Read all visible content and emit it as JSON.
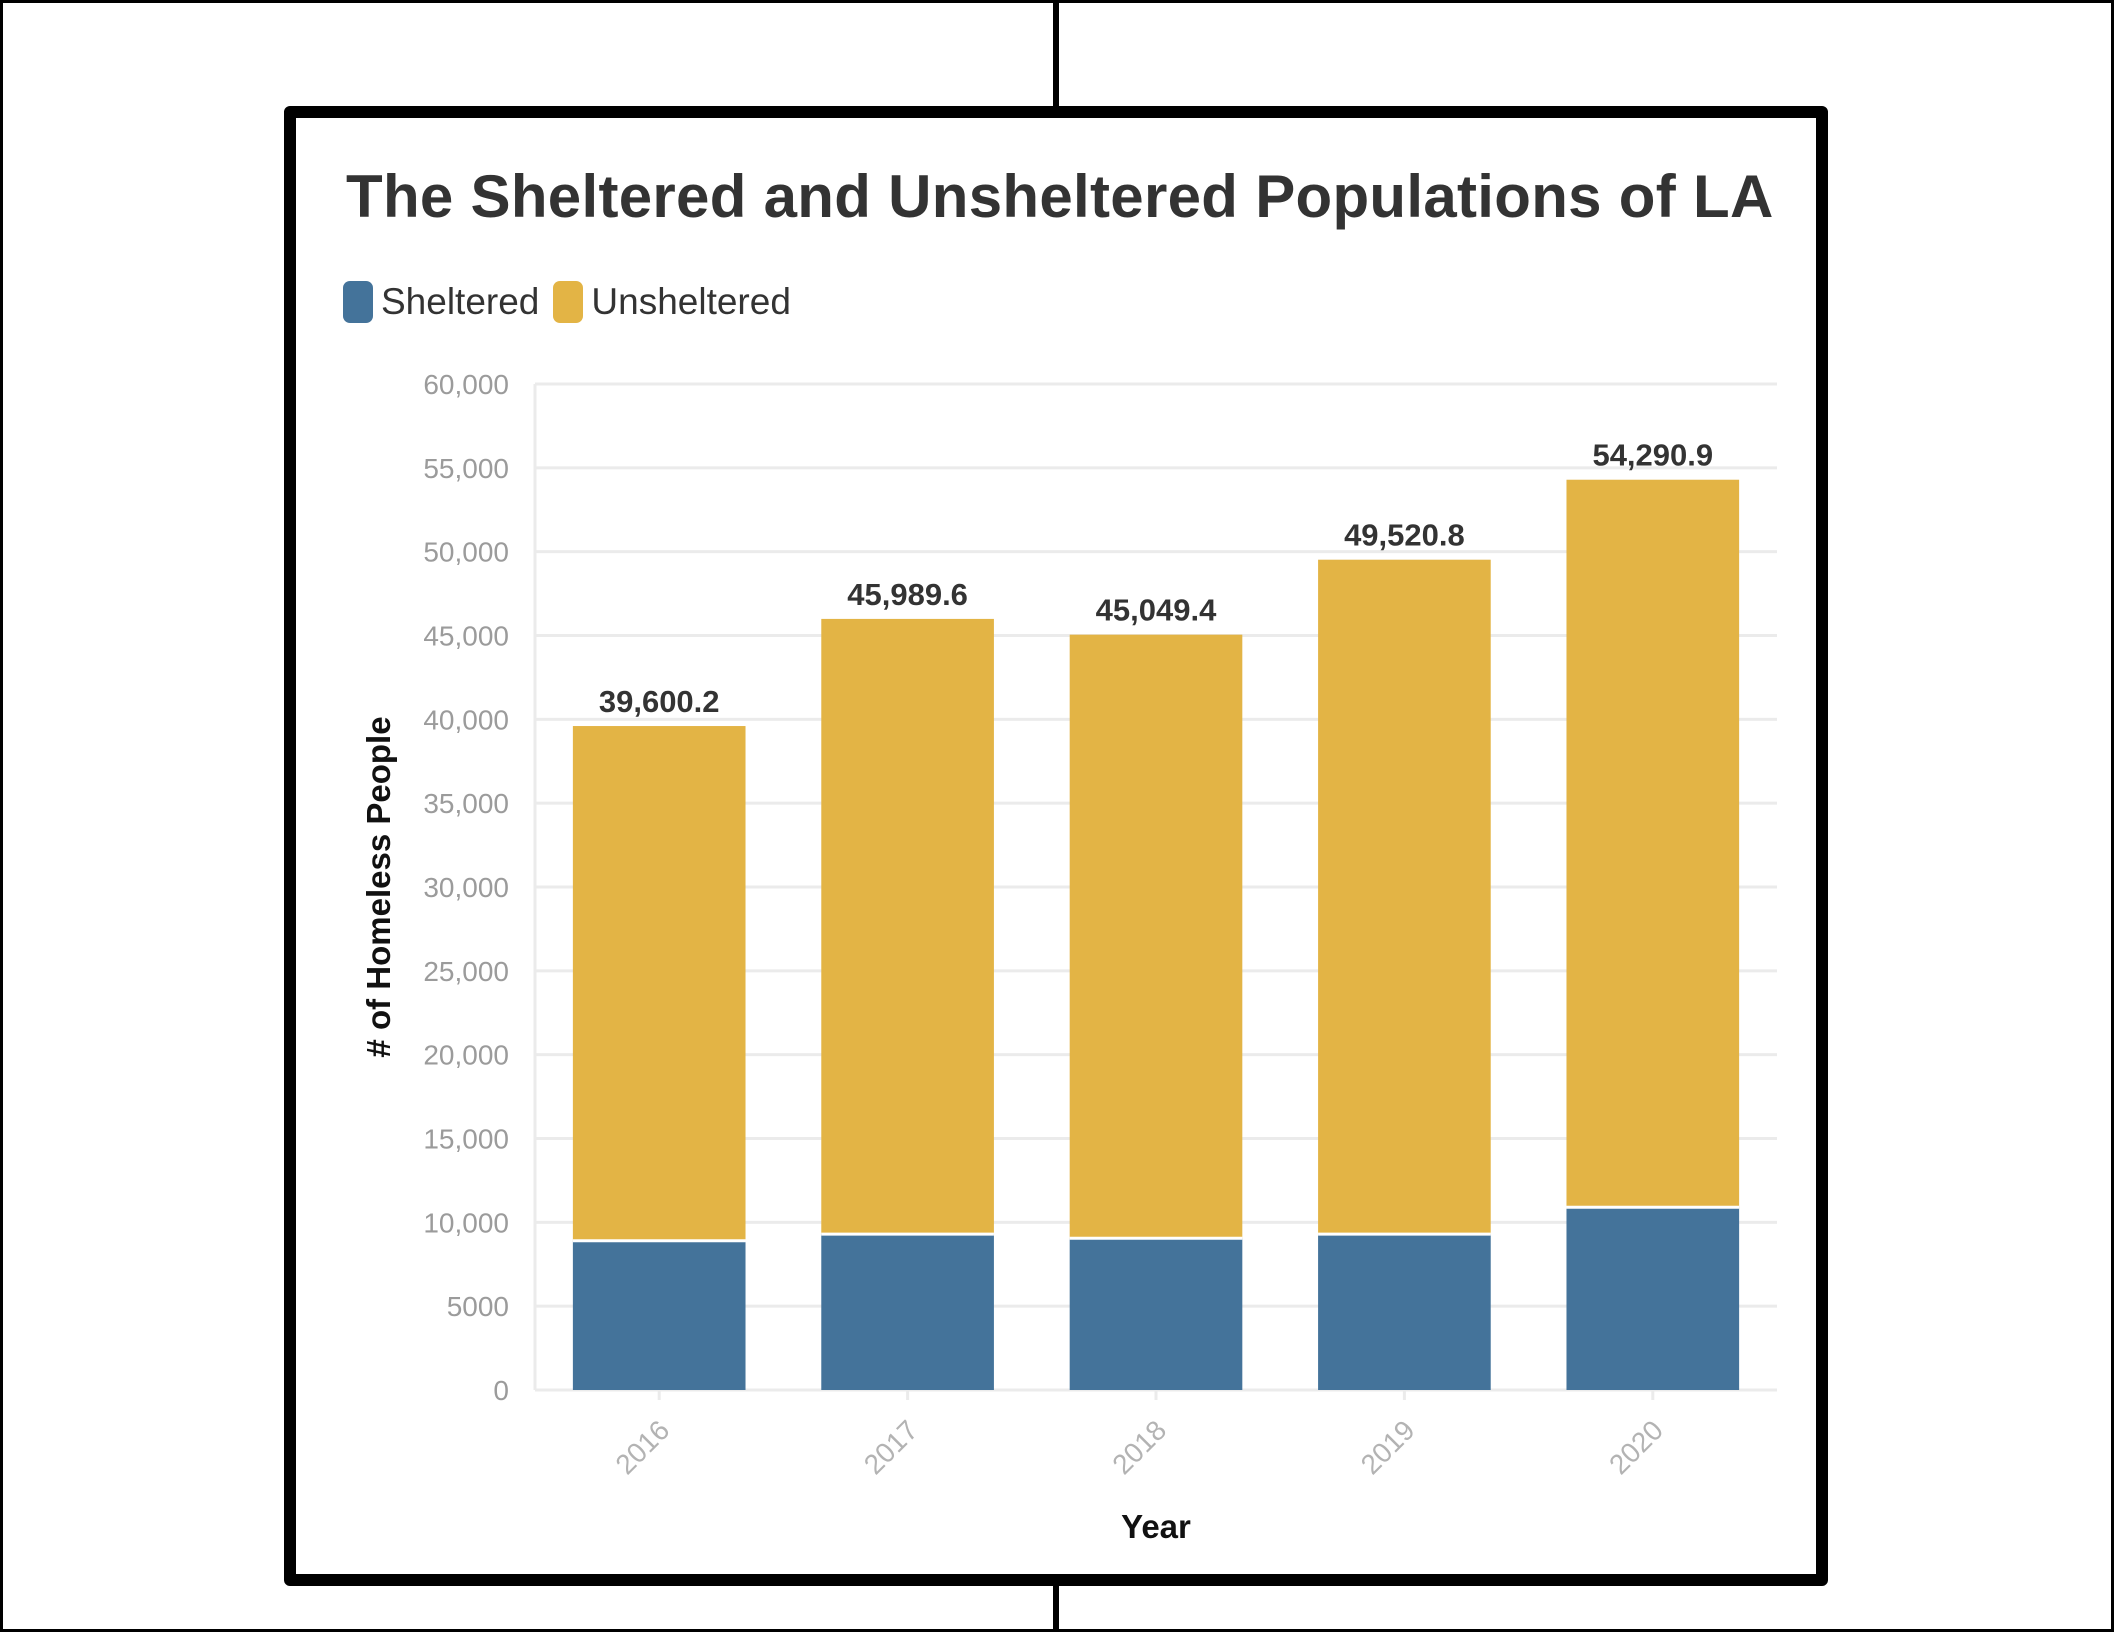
{
  "colors": {
    "sheltered": "#44739a",
    "unsheltered": "#e3b445",
    "grid": "#ebebeb",
    "separator": "#ffffff"
  },
  "chart_data": {
    "type": "bar",
    "stacked": true,
    "title": "The Sheltered and Unsheltered Populations of LA",
    "xlabel": "Year",
    "ylabel": "# of Homeless People",
    "categories": [
      "2016",
      "2017",
      "2018",
      "2019",
      "2020"
    ],
    "series": [
      {
        "name": "Sheltered",
        "color": "#44739a",
        "values": [
          8900,
          9300,
          9050,
          9300,
          10900
        ]
      },
      {
        "name": "Unsheltered",
        "color": "#e3b445",
        "values": [
          30700.2,
          36689.6,
          35999.4,
          40220.8,
          43390.9
        ]
      }
    ],
    "totals": [
      39600.2,
      45989.6,
      45049.4,
      49520.8,
      54290.9
    ],
    "total_labels": [
      "39,600.2",
      "45,989.6",
      "45,049.4",
      "49,520.8",
      "54,290.9"
    ],
    "ylim": [
      0,
      60000
    ],
    "yticks": [
      0,
      5000,
      10000,
      15000,
      20000,
      25000,
      30000,
      35000,
      40000,
      45000,
      50000,
      55000,
      60000
    ],
    "ytick_labels": [
      "0",
      "5000",
      "10,000",
      "15,000",
      "20,000",
      "25,000",
      "30,000",
      "35,000",
      "40,000",
      "45,000",
      "50,000",
      "55,000",
      "60,000"
    ],
    "grid": true,
    "legend_position": "top-left"
  }
}
